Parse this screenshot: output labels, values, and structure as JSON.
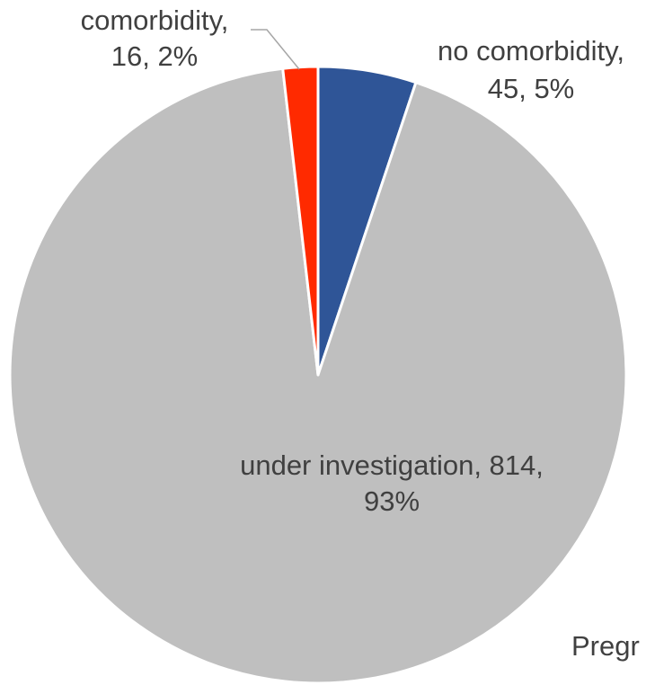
{
  "chart_data": {
    "type": "pie",
    "slices": [
      {
        "category": "no comorbidity",
        "value": 45,
        "percent_label": "5%",
        "color": "#2f5597"
      },
      {
        "category": "under investigation",
        "value": 814,
        "percent_label": "93%",
        "color": "#bfbfbf"
      },
      {
        "category": "comorbidity",
        "value": 16,
        "percent_label": "2%",
        "color": "#ff2a00"
      }
    ],
    "labels": [
      {
        "line1": "no comorbidity,",
        "line2": "45, 5%"
      },
      {
        "line1": "under investigation, 814,",
        "line2": "93%"
      },
      {
        "line1": "comorbidity,",
        "line2": "16, 2%"
      }
    ],
    "cut_off_text": "Pregr",
    "legend": "none",
    "separator_color": "#ffffff"
  }
}
